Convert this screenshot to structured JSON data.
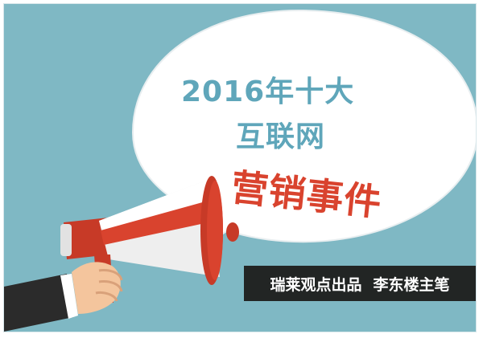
{
  "poster": {
    "title_line1": "2016年十大",
    "title_line2": "互联网",
    "highlight": "营销事件",
    "credit_source": "瑞莱观点出品",
    "credit_author": "李东楼主笔"
  },
  "colors": {
    "background": "#7fb8c4",
    "bubble": "#ffffff",
    "title": "#5fa6ba",
    "highlight": "#d9432e",
    "credit_bg": "#222524",
    "megaphone_red": "#d9432e",
    "megaphone_white": "#f2f2f2"
  },
  "icons": [
    "speech-bubble",
    "megaphone",
    "hand"
  ]
}
